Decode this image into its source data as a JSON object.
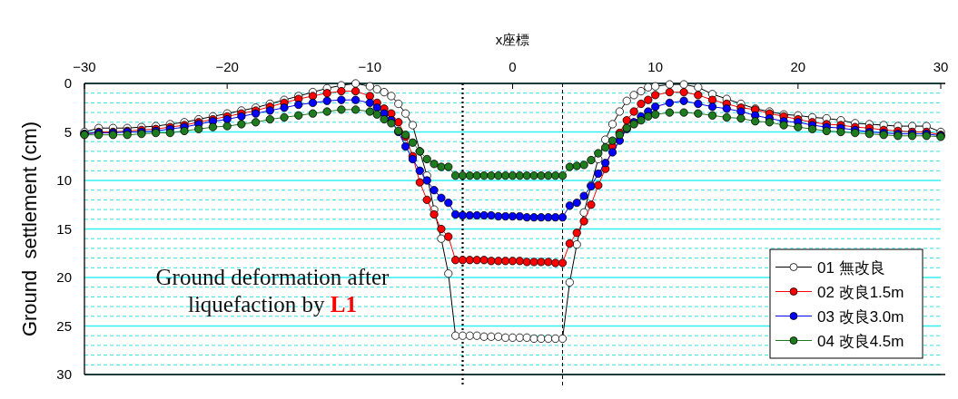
{
  "chart_data": {
    "type": "line",
    "xlabel": "x座標",
    "ylabel": "Ground  settlement (cm)",
    "annotations": [
      "Ground deformation after liquefaction by **L1**"
    ],
    "x": [
      -30,
      -29,
      -28,
      -27,
      -26,
      -25,
      -24,
      -23,
      -22,
      -21,
      -20,
      -19,
      -18,
      -17,
      -16,
      -15,
      -14,
      -13,
      -12,
      -11,
      -10,
      -9.5,
      -9,
      -8.5,
      -8,
      -7.5,
      -7,
      -6.5,
      -6,
      -5.5,
      -5,
      -4.5,
      -4,
      -3.5,
      -3,
      -2.5,
      -2,
      -1.5,
      -1,
      -0.5,
      0,
      0.5,
      1,
      1.5,
      2,
      2.5,
      3,
      3.5,
      4,
      4.5,
      5,
      5.5,
      6,
      6.5,
      7,
      7.5,
      8,
      8.5,
      9,
      9.5,
      10,
      11,
      12,
      13,
      14,
      15,
      16,
      17,
      18,
      19,
      20,
      21,
      22,
      23,
      24,
      25,
      26,
      27,
      28,
      29,
      30
    ],
    "series": [
      {
        "name": "01 無改良",
        "color": "#ffffff",
        "values": [
          5.0,
          4.6,
          4.6,
          4.6,
          4.5,
          4.4,
          4.2,
          4.0,
          3.7,
          3.4,
          3.1,
          2.8,
          2.5,
          2.1,
          1.7,
          1.3,
          0.9,
          0.5,
          0.2,
          0.0,
          0.3,
          0.6,
          0.9,
          1.3,
          2.1,
          3.1,
          4.3,
          7.0,
          9.5,
          13.0,
          16.0,
          19.6,
          26.0,
          26.0,
          26.0,
          26.0,
          26.1,
          26.1,
          26.1,
          26.2,
          26.2,
          26.2,
          26.2,
          26.3,
          26.3,
          26.3,
          26.3,
          26.3,
          20.5,
          16.6,
          13.3,
          10.5,
          7.8,
          5.8,
          4.2,
          2.9,
          1.8,
          1.2,
          0.8,
          0.4,
          0.3,
          0.1,
          0.1,
          0.4,
          1.1,
          1.6,
          2.1,
          2.6,
          2.9,
          3.2,
          3.3,
          3.5,
          3.6,
          3.8,
          4.1,
          4.2,
          4.3,
          4.4,
          4.4,
          4.4,
          5.0
        ]
      },
      {
        "name": "02 改良1.5m",
        "color": "#ff0000",
        "values": [
          5.2,
          5.0,
          5.0,
          4.9,
          4.8,
          4.7,
          4.5,
          4.3,
          4.0,
          3.7,
          3.4,
          3.1,
          2.8,
          2.4,
          2.0,
          1.6,
          1.3,
          1.0,
          0.8,
          0.8,
          1.3,
          2.0,
          2.6,
          3.1,
          4.0,
          5.5,
          7.5,
          10.2,
          12.0,
          13.5,
          15.0,
          15.8,
          18.2,
          18.2,
          18.2,
          18.2,
          18.2,
          18.3,
          18.3,
          18.3,
          18.3,
          18.3,
          18.4,
          18.4,
          18.4,
          18.4,
          18.5,
          18.5,
          16.5,
          15.4,
          14.2,
          12.5,
          10.5,
          8.8,
          6.5,
          5.1,
          3.8,
          2.9,
          2.1,
          1.7,
          1.2,
          0.9,
          0.9,
          1.2,
          1.7,
          2.1,
          2.5,
          2.7,
          3.1,
          3.4,
          3.7,
          4.0,
          4.2,
          4.3,
          4.5,
          4.6,
          4.8,
          4.9,
          5.0,
          5.0,
          5.3
        ]
      },
      {
        "name": "03 改良3.0m",
        "color": "#0000ff",
        "values": [
          5.2,
          5.1,
          5.1,
          5.0,
          5.0,
          4.9,
          4.7,
          4.5,
          4.2,
          3.9,
          3.7,
          3.4,
          3.1,
          2.8,
          2.5,
          2.2,
          2.0,
          1.8,
          1.7,
          1.7,
          2.0,
          2.5,
          3.1,
          3.8,
          5.0,
          6.5,
          7.8,
          9.0,
          10.0,
          11.0,
          11.8,
          12.3,
          13.5,
          13.6,
          13.6,
          13.6,
          13.6,
          13.6,
          13.7,
          13.7,
          13.7,
          13.7,
          13.8,
          13.8,
          13.8,
          13.8,
          13.8,
          13.8,
          12.6,
          12.3,
          11.6,
          10.6,
          9.3,
          8.2,
          7.1,
          5.9,
          4.7,
          4.0,
          3.4,
          2.9,
          2.4,
          2.0,
          1.8,
          2.1,
          2.4,
          2.6,
          2.9,
          3.3,
          3.6,
          3.9,
          4.0,
          4.3,
          4.5,
          4.6,
          4.8,
          5.0,
          5.1,
          5.2,
          5.2,
          5.2,
          5.4
        ]
      },
      {
        "name": "04 改良4.5m",
        "color": "#1e7b1e",
        "values": [
          5.3,
          5.3,
          5.3,
          5.3,
          5.2,
          5.1,
          5.1,
          4.9,
          4.7,
          4.5,
          4.4,
          4.2,
          4.0,
          3.7,
          3.5,
          3.3,
          3.1,
          2.9,
          2.7,
          2.7,
          2.9,
          3.2,
          3.7,
          4.1,
          4.9,
          5.3,
          6.1,
          7.0,
          7.8,
          8.3,
          8.6,
          8.6,
          9.5,
          9.5,
          9.5,
          9.5,
          9.5,
          9.5,
          9.5,
          9.5,
          9.5,
          9.5,
          9.5,
          9.5,
          9.5,
          9.5,
          9.5,
          9.5,
          8.6,
          8.5,
          8.4,
          7.9,
          7.2,
          6.6,
          5.9,
          5.3,
          4.6,
          4.2,
          3.8,
          3.4,
          3.2,
          3.0,
          3.0,
          3.1,
          3.3,
          3.5,
          3.6,
          3.9,
          4.0,
          4.3,
          4.5,
          4.7,
          4.9,
          5.0,
          5.1,
          5.2,
          5.3,
          5.4,
          5.4,
          5.4,
          5.5
        ]
      }
    ],
    "xlim": [
      -30,
      30
    ],
    "xticks": [
      -30,
      -20,
      -10,
      0,
      10,
      20,
      30
    ],
    "ylim": [
      30,
      0
    ],
    "yticks": [
      0,
      {
        "value": 1,
        "label": null
      },
      {
        "value": 2,
        "label": null
      },
      {
        "value": 3,
        "label": null
      },
      {
        "value": 4,
        "label": null
      },
      5,
      {
        "value": 6,
        "label": null
      },
      {
        "value": 7,
        "label": null
      },
      {
        "value": 8,
        "label": null
      },
      {
        "value": 9,
        "label": null
      },
      10,
      {
        "value": 11,
        "label": null
      },
      {
        "value": 12,
        "label": null
      },
      {
        "value": 13,
        "label": null
      },
      {
        "value": 14,
        "label": null
      },
      15,
      {
        "value": 16,
        "label": null
      },
      {
        "value": 17,
        "label": null
      },
      {
        "value": 18,
        "label": null
      },
      {
        "value": 19,
        "label": null
      },
      20,
      {
        "value": 21,
        "label": null
      },
      {
        "value": 22,
        "label": null
      },
      {
        "value": 23,
        "label": null
      },
      {
        "value": 24,
        "label": null
      },
      25,
      {
        "value": 26,
        "label": null
      },
      {
        "value": 27,
        "label": null
      },
      {
        "value": 28,
        "label": null
      },
      {
        "value": 29,
        "label": null
      },
      30
    ],
    "ref_lines": [
      {
        "axis": "x",
        "value": -3.5,
        "line_style": "dotted"
      },
      {
        "axis": "x",
        "value": 3.5,
        "line_style": "dashed"
      }
    ],
    "grid": "y",
    "legend": "bottom right",
    "marker": "circle",
    "line_style": "solid"
  }
}
